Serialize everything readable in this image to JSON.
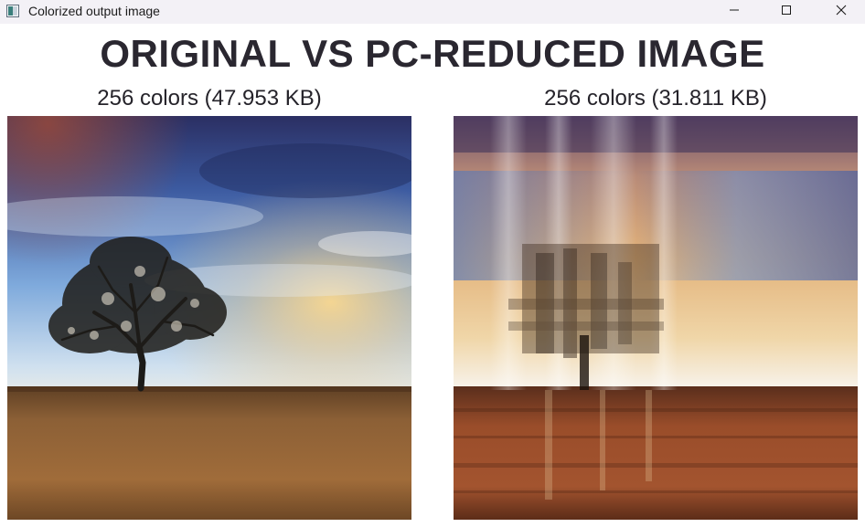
{
  "window": {
    "title": "Colorized output image",
    "icon": "app-image-icon",
    "controls": {
      "minimize_icon": "minimize-icon",
      "maximize_icon": "maximize-icon",
      "close_icon": "close-icon"
    }
  },
  "figure": {
    "title": "ORIGINAL VS PC-REDUCED IMAGE",
    "left_caption": "256 colors (47.953 KB)",
    "right_caption": "256 colors (31.811 KB)"
  },
  "colors": {
    "title_text": "#2a2730",
    "sky_top": "#2d3d7a",
    "sky_mid": "#7aa3d8",
    "horizon": "#f4f0e6",
    "ground": "#8b5a2b"
  }
}
